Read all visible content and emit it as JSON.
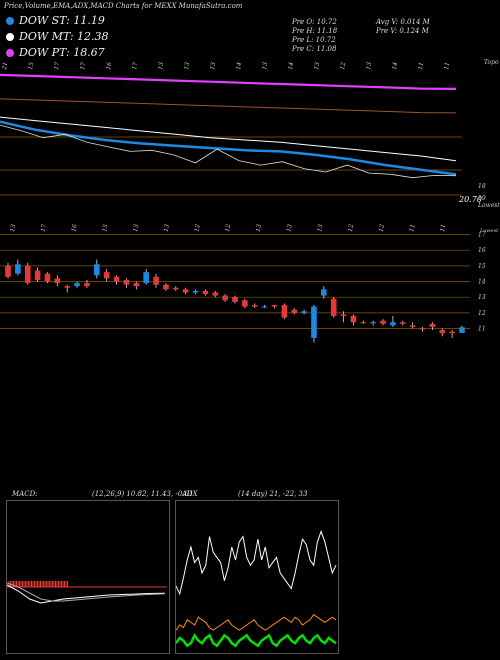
{
  "title": "Price,Volume,EMA,ADX,MACD Charts for MEXX  MunafaSutra.com",
  "legend": [
    {
      "label": "DOW ST: 11.19",
      "color": "#1e88e5"
    },
    {
      "label": "DOW MT: 12.38",
      "color": "#ffffff"
    },
    {
      "label": "DOW PT: 18.67",
      "color": "#e040fb"
    }
  ],
  "stats": {
    "prev_o": "Pre  O: 10.72",
    "prev_h": "Pre  H: 11.18",
    "prev_l": "Pre  L: 10.72",
    "prev_c": "Pre  C: 11.08",
    "avg_v": "Avg V: 0.014  M",
    "prev_v": "Pre  V: 0.124  M"
  },
  "colors": {
    "up": "#1e88e5",
    "down": "#e53935",
    "pt": "#e040fb",
    "st": "#1e88e5",
    "mt": "#ffffff",
    "grid": "#8a5a00",
    "adx": "#00e000",
    "plus_di": "#ff8c00",
    "macd_hist": "#e53935"
  },
  "chart_data": [
    {
      "type": "line",
      "name": "ema-panel",
      "top_labels": [
        "21",
        "15",
        "17",
        "17",
        "16",
        "17",
        "13",
        "13",
        "13",
        "14",
        "13",
        "14",
        "13",
        "12",
        "13",
        "14",
        "11",
        "11"
      ],
      "right_labels": [
        "Topo",
        "20.70",
        "19",
        "18",
        "Lowest"
      ],
      "series": [
        {
          "name": "PT",
          "values": [
            19.9,
            19.8,
            19.7,
            19.6,
            19.5,
            19.4,
            19.3,
            19.2,
            19.1,
            19.0,
            18.9,
            18.8,
            18.7,
            18.67
          ]
        },
        {
          "name": "MT",
          "values": [
            16.2,
            15.9,
            15.6,
            15.3,
            15.0,
            14.7,
            14.4,
            14.2,
            14.0,
            13.7,
            13.4,
            13.1,
            12.8,
            12.38
          ]
        },
        {
          "name": "ST",
          "values": [
            15.8,
            15.1,
            14.6,
            14.2,
            13.9,
            13.7,
            13.5,
            13.3,
            13.2,
            12.9,
            12.5,
            12.0,
            11.6,
            11.19
          ]
        }
      ],
      "price": [
        15.5,
        15.0,
        14.4,
        14.7,
        14.0,
        13.6,
        13.2,
        13.3,
        12.9,
        12.2,
        13.4,
        12.4,
        12.0,
        12.3,
        11.7,
        11.4,
        12.0,
        11.3,
        11.2,
        10.9,
        11.1,
        11.08
      ]
    },
    {
      "type": "candlestick",
      "name": "price-panel",
      "top_labels": [
        "13",
        "17",
        "16",
        "15",
        "13",
        "13",
        "12",
        "12",
        "13",
        "13",
        "13",
        "12",
        "12",
        "11",
        "11"
      ],
      "right_labels": [
        "Lowest",
        "17",
        "16",
        "15",
        "14",
        "13",
        "12",
        "11"
      ],
      "y_ticks": [
        17,
        16,
        15,
        14,
        13,
        12,
        11
      ],
      "ylim": [
        9.5,
        17.8
      ],
      "candles": [
        [
          15.0,
          14.3,
          15.2,
          14.2,
          "down"
        ],
        [
          14.5,
          15.1,
          15.4,
          14.4,
          "up"
        ],
        [
          15.0,
          13.9,
          15.2,
          13.8,
          "down"
        ],
        [
          14.7,
          14.1,
          14.9,
          14.0,
          "down"
        ],
        [
          14.5,
          14.0,
          14.6,
          13.9,
          "down"
        ],
        [
          14.2,
          13.9,
          14.4,
          13.7,
          "down"
        ],
        [
          13.7,
          13.6,
          13.8,
          13.3,
          "down"
        ],
        [
          13.7,
          13.9,
          14.0,
          13.6,
          "up"
        ],
        [
          13.9,
          13.7,
          14.1,
          13.6,
          "down"
        ],
        [
          14.4,
          15.1,
          15.4,
          14.2,
          "up"
        ],
        [
          14.6,
          14.2,
          14.8,
          14.0,
          "down"
        ],
        [
          14.3,
          14.0,
          14.4,
          13.8,
          "down"
        ],
        [
          14.1,
          13.8,
          14.2,
          13.6,
          "down"
        ],
        [
          13.9,
          13.7,
          14.0,
          13.5,
          "down"
        ],
        [
          13.9,
          14.6,
          14.8,
          13.8,
          "up"
        ],
        [
          14.3,
          13.8,
          14.5,
          13.6,
          "down"
        ],
        [
          13.8,
          13.5,
          13.9,
          13.4,
          "down"
        ],
        [
          13.6,
          13.5,
          13.7,
          13.4,
          "down"
        ],
        [
          13.5,
          13.3,
          13.6,
          13.2,
          "down"
        ],
        [
          13.3,
          13.4,
          13.5,
          13.2,
          "up"
        ],
        [
          13.4,
          13.2,
          13.5,
          13.1,
          "down"
        ],
        [
          13.3,
          13.1,
          13.4,
          13.0,
          "down"
        ],
        [
          13.1,
          12.8,
          13.2,
          12.7,
          "down"
        ],
        [
          13.0,
          12.7,
          13.1,
          12.6,
          "down"
        ],
        [
          12.8,
          12.4,
          12.9,
          12.3,
          "down"
        ],
        [
          12.5,
          12.4,
          12.6,
          12.3,
          "down"
        ],
        [
          12.4,
          12.4,
          12.5,
          12.3,
          "up"
        ],
        [
          12.5,
          12.4,
          12.5,
          12.3,
          "down"
        ],
        [
          12.5,
          11.7,
          12.6,
          11.6,
          "down"
        ],
        [
          12.2,
          12.0,
          12.3,
          11.9,
          "down"
        ],
        [
          12.0,
          12.1,
          12.2,
          11.9,
          "up"
        ],
        [
          12.4,
          10.4,
          12.5,
          10.1,
          "up"
        ],
        [
          13.1,
          13.5,
          13.7,
          12.9,
          "up"
        ],
        [
          12.9,
          11.8,
          13.0,
          11.7,
          "down"
        ],
        [
          11.9,
          11.8,
          12.1,
          11.4,
          "down"
        ],
        [
          11.8,
          11.4,
          11.9,
          11.2,
          "down"
        ],
        [
          11.4,
          11.4,
          11.5,
          11.3,
          "down"
        ],
        [
          11.4,
          11.4,
          11.5,
          11.2,
          "up"
        ],
        [
          11.5,
          11.3,
          11.6,
          11.2,
          "down"
        ],
        [
          11.2,
          11.4,
          11.8,
          11.1,
          "up"
        ],
        [
          11.4,
          11.3,
          11.5,
          11.2,
          "down"
        ],
        [
          11.2,
          11.1,
          11.4,
          11.0,
          "down"
        ],
        [
          11.0,
          11.0,
          11.1,
          10.8,
          "down"
        ],
        [
          11.3,
          11.1,
          11.4,
          10.9,
          "down"
        ],
        [
          10.9,
          10.7,
          11.0,
          10.5,
          "down"
        ],
        [
          10.8,
          10.7,
          10.9,
          10.4,
          "down"
        ],
        [
          10.72,
          11.08,
          11.18,
          10.72,
          "up"
        ]
      ]
    },
    {
      "type": "line",
      "name": "macd-panel",
      "label": "MACD:",
      "params": "(12,26,9) 10.82, 11.43, -0.61",
      "macd": [
        -0.2,
        -0.5,
        -0.9,
        -1.1,
        -1.0,
        -0.9,
        -0.85,
        -0.8,
        -0.75,
        -0.7,
        -0.68,
        -0.66,
        -0.64,
        -0.62,
        -0.61
      ],
      "signal": [
        -0.1,
        -0.3,
        -0.6,
        -0.9,
        -1.0,
        -1.0,
        -0.95,
        -0.9,
        -0.85,
        -0.8,
        -0.76,
        -0.72,
        -0.69,
        -0.66,
        -0.64
      ],
      "hist": [
        -0.1,
        -0.2,
        -0.3,
        -0.2,
        0.0,
        0.1,
        0.1,
        0.1,
        0.1,
        0.1,
        0.08,
        0.06,
        0.05,
        0.04,
        0.03
      ]
    },
    {
      "type": "line",
      "name": "adx-panel",
      "label": "ADX",
      "params": "(14 day) 21, -22, 33",
      "minus_di": [
        25,
        22,
        28,
        35,
        40,
        34,
        36,
        30,
        33,
        44,
        38,
        36,
        34,
        27,
        32,
        40,
        35,
        42,
        44,
        36,
        33,
        35,
        43,
        35,
        40,
        32,
        34,
        36,
        30,
        28,
        26,
        24,
        30,
        37,
        43,
        41,
        35,
        33,
        42,
        46,
        42,
        36,
        30,
        33
      ],
      "plus_di": [
        8,
        10,
        9,
        12,
        11,
        10,
        13,
        12,
        11,
        9,
        8,
        9,
        10,
        11,
        12,
        10,
        9,
        8,
        9,
        10,
        11,
        12,
        10,
        9,
        8,
        9,
        10,
        11,
        12,
        13,
        12,
        11,
        13,
        12,
        10,
        11,
        12,
        14,
        13,
        12,
        11,
        12,
        13,
        12
      ],
      "adx": [
        3,
        5,
        4,
        2,
        3,
        6,
        4,
        3,
        5,
        6,
        3,
        2,
        4,
        6,
        5,
        3,
        2,
        4,
        5,
        6,
        4,
        3,
        2,
        4,
        5,
        6,
        3,
        2,
        4,
        5,
        6,
        4,
        3,
        5,
        6,
        4,
        3,
        5,
        6,
        4,
        3,
        5,
        4,
        3
      ]
    }
  ]
}
